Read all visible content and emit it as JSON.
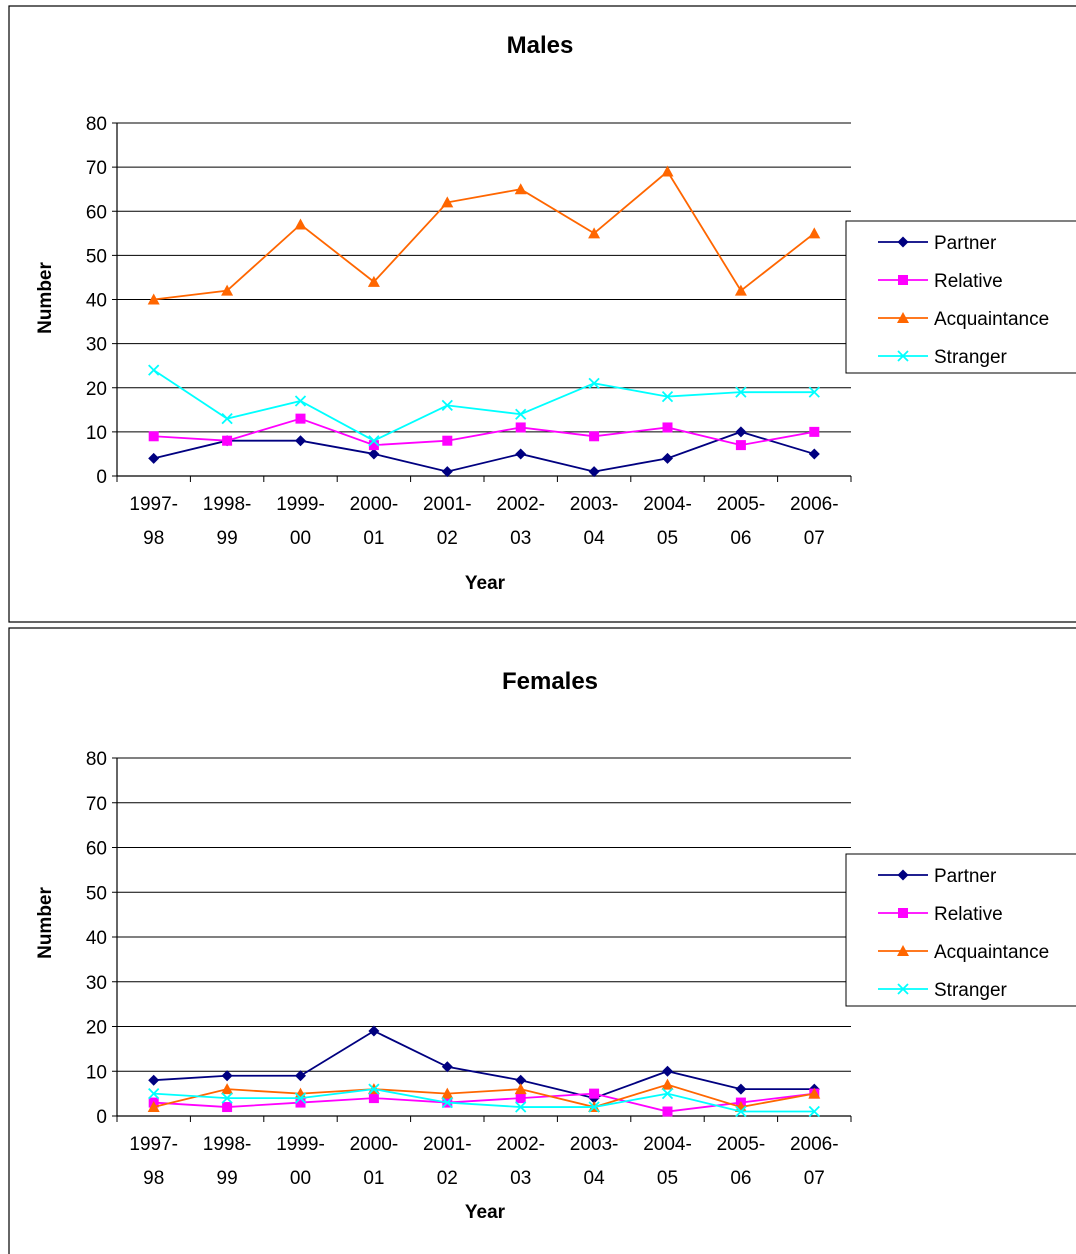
{
  "chart_data": [
    {
      "type": "line",
      "title": "Males",
      "xlabel": "Year",
      "ylabel": "Number",
      "ylim": [
        0,
        80
      ],
      "yticks": [
        "0",
        "10",
        "20",
        "30",
        "40",
        "50",
        "60",
        "70",
        "80"
      ],
      "grid": true,
      "legend_position": "right",
      "categories": [
        [
          "1997-",
          "98"
        ],
        [
          "1998-",
          "99"
        ],
        [
          "1999-",
          "00"
        ],
        [
          "2000-",
          "01"
        ],
        [
          "2001-",
          "02"
        ],
        [
          "2002-",
          "03"
        ],
        [
          "2003-",
          "04"
        ],
        [
          "2004-",
          "05"
        ],
        [
          "2005-",
          "06"
        ],
        [
          "2006-",
          "07"
        ]
      ],
      "series": [
        {
          "name": "Partner",
          "color": "#000080",
          "marker": "diamond",
          "values": [
            4,
            8,
            8,
            5,
            1,
            5,
            1,
            4,
            10,
            5
          ]
        },
        {
          "name": "Relative",
          "color": "#FF00FF",
          "marker": "square",
          "values": [
            9,
            8,
            13,
            7,
            8,
            11,
            9,
            11,
            7,
            10
          ]
        },
        {
          "name": "Acquaintance",
          "color": "#FF6600",
          "marker": "triangle",
          "values": [
            40,
            42,
            57,
            44,
            62,
            65,
            55,
            69,
            42,
            55
          ]
        },
        {
          "name": "Stranger",
          "color": "#00FFFF",
          "marker": "x",
          "values": [
            24,
            13,
            17,
            8,
            16,
            14,
            21,
            18,
            19,
            19
          ]
        }
      ]
    },
    {
      "type": "line",
      "title": "Females",
      "xlabel": "Year",
      "ylabel": "Number",
      "ylim": [
        0,
        80
      ],
      "yticks": [
        "0",
        "10",
        "20",
        "30",
        "40",
        "50",
        "60",
        "70",
        "80"
      ],
      "grid": true,
      "legend_position": "right",
      "categories": [
        [
          "1997-",
          "98"
        ],
        [
          "1998-",
          "99"
        ],
        [
          "1999-",
          "00"
        ],
        [
          "2000-",
          "01"
        ],
        [
          "2001-",
          "02"
        ],
        [
          "2002-",
          "03"
        ],
        [
          "2003-",
          "04"
        ],
        [
          "2004-",
          "05"
        ],
        [
          "2005-",
          "06"
        ],
        [
          "2006-",
          "07"
        ]
      ],
      "series": [
        {
          "name": "Partner",
          "color": "#000080",
          "marker": "diamond",
          "values": [
            8,
            9,
            9,
            19,
            11,
            8,
            4,
            10,
            6,
            6
          ]
        },
        {
          "name": "Relative",
          "color": "#FF00FF",
          "marker": "square",
          "values": [
            3,
            2,
            3,
            4,
            3,
            4,
            5,
            1,
            3,
            5
          ]
        },
        {
          "name": "Acquaintance",
          "color": "#FF6600",
          "marker": "triangle",
          "values": [
            2,
            6,
            5,
            6,
            5,
            6,
            2,
            7,
            2,
            5
          ]
        },
        {
          "name": "Stranger",
          "color": "#00FFFF",
          "marker": "x",
          "values": [
            5,
            4,
            4,
            6,
            3,
            2,
            2,
            5,
            1,
            1
          ]
        }
      ]
    }
  ]
}
